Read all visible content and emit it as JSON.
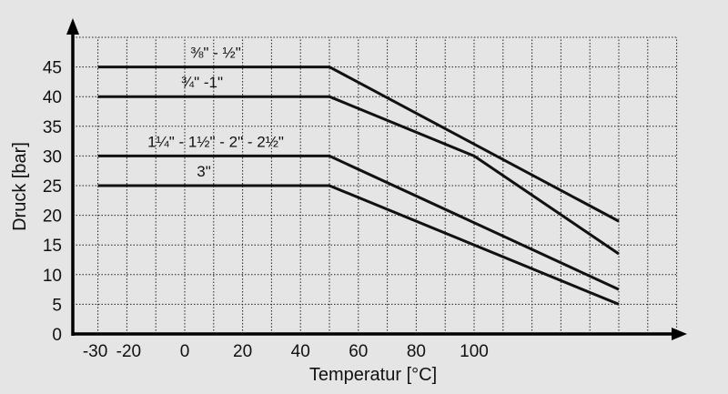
{
  "chart_data": {
    "type": "line",
    "title": "",
    "xlabel": "Temperatur [°C]",
    "ylabel": "Druck [bar]",
    "xlim": [
      -30,
      170
    ],
    "ylim": [
      0,
      50
    ],
    "grid": true,
    "x_ticks": [
      -30,
      -20,
      0,
      20,
      40,
      60,
      80,
      100
    ],
    "x_tick_labels": [
      "-30",
      "-20",
      "0",
      "20",
      "40",
      "60",
      "80",
      "100"
    ],
    "y_ticks": [
      0,
      5,
      10,
      15,
      20,
      25,
      30,
      35,
      40,
      45
    ],
    "y_tick_labels": [
      "0",
      "5",
      "10",
      "15",
      "20",
      "25",
      "30",
      "35",
      "40",
      "45"
    ],
    "series": [
      {
        "name": "⅜\" - ½\"",
        "x": [
          -30,
          50,
          150
        ],
        "y": [
          45,
          45,
          19
        ]
      },
      {
        "name": "¾\" -1\"",
        "x": [
          -30,
          50,
          100,
          150
        ],
        "y": [
          40,
          40,
          30,
          13.5
        ]
      },
      {
        "name": "1¼\" - 1½\" - 2\" - 2½\"",
        "x": [
          -30,
          50,
          150
        ],
        "y": [
          30,
          30,
          7.5
        ]
      },
      {
        "name": "3\"",
        "x": [
          -30,
          50,
          150
        ],
        "y": [
          25,
          25,
          5
        ]
      }
    ]
  }
}
